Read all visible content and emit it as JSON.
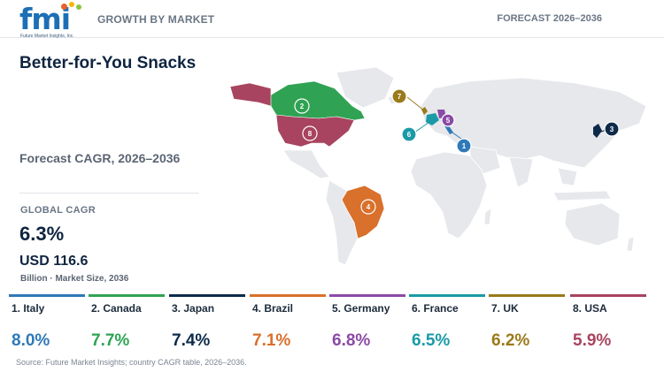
{
  "header": {
    "logo_text": "fmi",
    "logo_tagline": "Future Market Insights, Inc.",
    "left_label": "GROWTH BY MARKET",
    "right_label": "FORECAST 2026–2036"
  },
  "title": "Better-for-You Snacks",
  "subtitle": "Forecast CAGR, 2026–2036",
  "global": {
    "label": "GLOBAL CAGR",
    "value": "6.3%",
    "market_size": "USD 116.6",
    "market_size_label": "Billion · Market Size, 2036"
  },
  "colors": {
    "italy": "#2f79b8",
    "canada": "#2fa353",
    "japan": "#0e2a4a",
    "brazil": "#d9702b",
    "germany": "#8b4aa6",
    "france": "#1a9aa6",
    "uk": "#9a7a1a",
    "usa": "#a8445f",
    "land": "#e6e8eb"
  },
  "markers": [
    {
      "rank": "1",
      "country": "Italy"
    },
    {
      "rank": "2",
      "country": "Canada"
    },
    {
      "rank": "3",
      "country": "Japan"
    },
    {
      "rank": "4",
      "country": "Brazil"
    },
    {
      "rank": "5",
      "country": "Germany"
    },
    {
      "rank": "6",
      "country": "France"
    },
    {
      "rank": "7",
      "country": "UK"
    },
    {
      "rank": "8",
      "country": "USA"
    }
  ],
  "countries": [
    {
      "label": "1. Italy",
      "value": "8.0%",
      "color": "#2f79b8"
    },
    {
      "label": "2. Canada",
      "value": "7.7%",
      "color": "#2fa353"
    },
    {
      "label": "3. Japan",
      "value": "7.4%",
      "color": "#0e2a4a"
    },
    {
      "label": "4. Brazil",
      "value": "7.1%",
      "color": "#d9702b"
    },
    {
      "label": "5. Germany",
      "value": "6.8%",
      "color": "#8b4aa6"
    },
    {
      "label": "6. France",
      "value": "6.5%",
      "color": "#1a9aa6"
    },
    {
      "label": "7. UK",
      "value": "6.2%",
      "color": "#9a7a1a"
    },
    {
      "label": "8. USA",
      "value": "5.9%",
      "color": "#a8445f"
    }
  ],
  "source": "Source: Future Market Insights; country CAGR table, 2026–2036."
}
